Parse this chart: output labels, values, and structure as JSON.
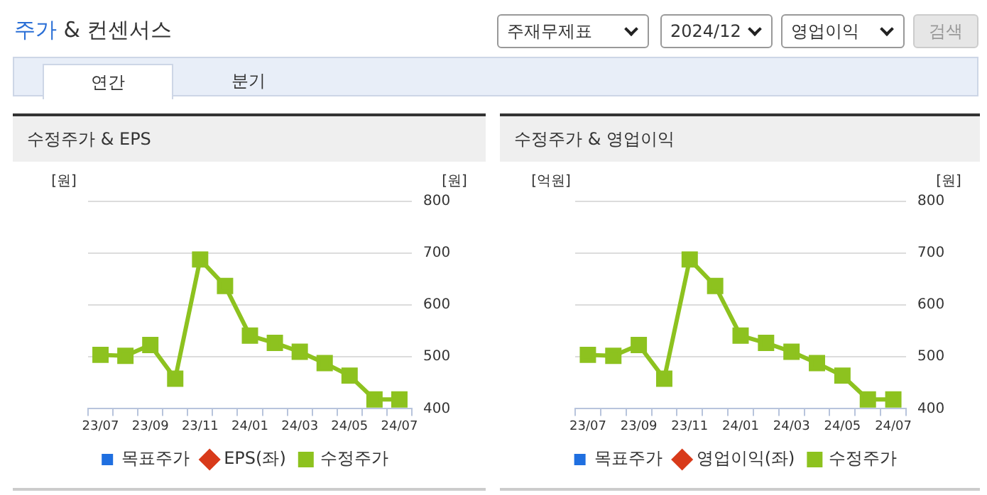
{
  "chart_data": [
    {
      "type": "other",
      "title": "주가 & 컨센서스",
      "annotations": [
        "주재무제표",
        "2024/12",
        "영업이익",
        "검색",
        "연간",
        "분기"
      ]
    },
    {
      "type": "line",
      "title": "수정주가 & EPS",
      "ylabel": "[원]",
      "y2label": "[원]",
      "categories": [
        "23/07",
        null,
        "23/09",
        null,
        "23/11",
        null,
        "24/01",
        null,
        "24/03",
        null,
        "24/05",
        null,
        "24/07"
      ],
      "series": [
        {
          "name": "목표주가",
          "type": "bar",
          "color": "#1f6fe0",
          "values": [
            null,
            null,
            null,
            null,
            null,
            null,
            null,
            null,
            null,
            null,
            null,
            null,
            null
          ]
        },
        {
          "name": "EPS(좌)",
          "type": "line",
          "marker": "diamond",
          "color": "#d83a1a",
          "values": [
            null,
            null,
            null,
            null,
            null,
            null,
            null,
            null,
            null,
            null,
            null,
            null,
            null
          ]
        },
        {
          "name": "수정주가",
          "type": "line",
          "marker": "square",
          "axis": "y2",
          "color": "#8dc21f",
          "values": [
            504,
            502,
            523,
            458,
            688,
            637,
            541,
            527,
            510,
            488,
            464,
            418,
            418
          ]
        }
      ],
      "y2lim": [
        400,
        800
      ],
      "y2ticks": [
        400,
        500,
        600,
        700,
        800
      ],
      "grid": "y",
      "legend": "bottom"
    },
    {
      "type": "line",
      "title": "수정주가 & 영업이익",
      "ylabel": "[억원]",
      "y2label": "[원]",
      "categories": [
        "23/07",
        null,
        "23/09",
        null,
        "23/11",
        null,
        "24/01",
        null,
        "24/03",
        null,
        "24/05",
        null,
        "24/07"
      ],
      "series": [
        {
          "name": "목표주가",
          "type": "bar",
          "color": "#1f6fe0",
          "values": [
            null,
            null,
            null,
            null,
            null,
            null,
            null,
            null,
            null,
            null,
            null,
            null,
            null
          ]
        },
        {
          "name": "영업이익(좌)",
          "type": "line",
          "marker": "diamond",
          "color": "#d83a1a",
          "values": [
            null,
            null,
            null,
            null,
            null,
            null,
            null,
            null,
            null,
            null,
            null,
            null,
            null
          ]
        },
        {
          "name": "수정주가",
          "type": "line",
          "marker": "square",
          "axis": "y2",
          "color": "#8dc21f",
          "values": [
            504,
            502,
            523,
            458,
            688,
            637,
            541,
            527,
            510,
            488,
            464,
            418,
            418
          ]
        }
      ],
      "y2lim": [
        400,
        800
      ],
      "y2ticks": [
        400,
        500,
        600,
        700,
        800
      ],
      "grid": "y",
      "legend": "bottom"
    }
  ]
}
